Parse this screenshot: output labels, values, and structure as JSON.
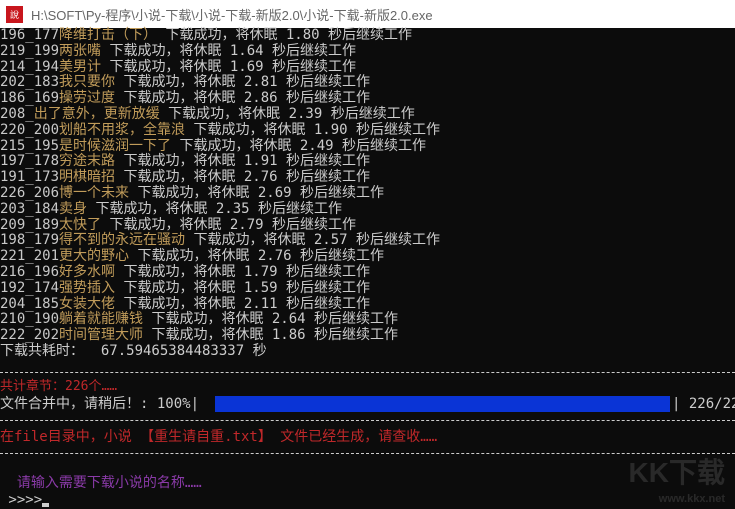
{
  "window": {
    "title": "H:\\SOFT\\Py-程序\\小说-下载\\小说-下载-新版2.0\\小说-下载-新版2.0.exe",
    "icon": "app-seal-icon"
  },
  "log": [
    {
      "id": "196_177",
      "name": "降维打击（下）",
      "msg": " 下载成功，将休眠 1.80 秒后继续工作"
    },
    {
      "id": "219_199",
      "name": "两张嘴",
      "msg": " 下载成功，将休眠 1.64 秒后继续工作"
    },
    {
      "id": "214_194",
      "name": "美男计",
      "msg": " 下载成功，将休眠 1.69 秒后继续工作"
    },
    {
      "id": "202_183",
      "name": "我只要你",
      "msg": " 下载成功，将休眠 2.81 秒后继续工作"
    },
    {
      "id": "186_169",
      "name": "操劳过度",
      "msg": " 下载成功，将休眠 2.86 秒后继续工作"
    },
    {
      "id": "208_",
      "name": "出了意外，更新放缓",
      "msg": " 下载成功，将休眠 2.39 秒后继续工作"
    },
    {
      "id": "220_200",
      "name": "划船不用浆，全靠浪",
      "msg": " 下载成功，将休眠 1.90 秒后继续工作"
    },
    {
      "id": "215_195",
      "name": "是时候滋润一下了",
      "msg": " 下载成功，将休眠 2.49 秒后继续工作"
    },
    {
      "id": "197_178",
      "name": "穷途末路",
      "msg": " 下载成功，将休眠 1.91 秒后继续工作"
    },
    {
      "id": "191_173",
      "name": "明棋暗招",
      "msg": " 下载成功，将休眠 2.76 秒后继续工作"
    },
    {
      "id": "226_206",
      "name": "博一个未来",
      "msg": " 下载成功，将休眠 2.69 秒后继续工作"
    },
    {
      "id": "203_184",
      "name": "卖身",
      "msg": " 下载成功，将休眠 2.35 秒后继续工作"
    },
    {
      "id": "209_189",
      "name": "太快了",
      "msg": " 下载成功，将休眠 2.79 秒后继续工作"
    },
    {
      "id": "198_179",
      "name": "得不到的永远在骚动",
      "msg": " 下载成功，将休眠 2.57 秒后继续工作"
    },
    {
      "id": "221_201",
      "name": "更大的野心",
      "msg": " 下载成功，将休眠 2.76 秒后继续工作"
    },
    {
      "id": "216_196",
      "name": "好多水啊",
      "msg": " 下载成功，将休眠 1.79 秒后继续工作"
    },
    {
      "id": "192_174",
      "name": "强势插入",
      "msg": " 下载成功，将休眠 1.59 秒后继续工作"
    },
    {
      "id": "204_185",
      "name": "女装大佬",
      "msg": " 下载成功，将休眠 2.11 秒后继续工作"
    },
    {
      "id": "210_190",
      "name": "躺着就能赚钱",
      "msg": " 下载成功，将休眠 2.64 秒后继续工作"
    },
    {
      "id": "222_202",
      "name": "时间管理大师",
      "msg": " 下载成功，将休眠 1.86 秒后继续工作"
    }
  ],
  "total_time": "下载共耗时：  67.59465384483337 秒",
  "chapters": "共计章节：226个……",
  "progress": {
    "label": "文件合并中，请稍后！: 100%|",
    "percent": 100,
    "count": "| 226/22"
  },
  "file_msg": "在file目录中，小说 【重生请自重.txt】 文件已经生成，请查收……",
  "prompt_msg": "  请输入需要下载小说的名称……",
  "prompt": " >>>>",
  "watermark": "KK下载 www.kkx.net",
  "colors": {
    "name": "#c19c5a",
    "red": "#c0282a",
    "purple": "#8a3aa8",
    "bar": "#0a34d6"
  }
}
